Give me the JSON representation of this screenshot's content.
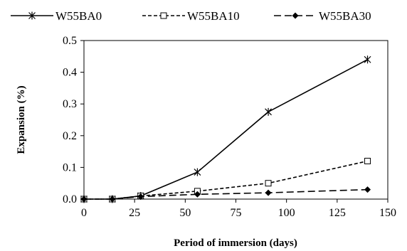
{
  "chart_data": {
    "type": "line",
    "xlabel": "Period of immersion (days)",
    "ylabel": "Expansion (%)",
    "xlim": [
      0,
      150
    ],
    "ylim": [
      0,
      0.5
    ],
    "xticks": [
      0,
      25,
      50,
      75,
      100,
      125,
      150
    ],
    "yticks": [
      "0.0",
      "0.1",
      "0.2",
      "0.3",
      "0.4",
      "0.5"
    ],
    "grid": false,
    "legend_position": "top",
    "series": [
      {
        "name": "W55BA0",
        "marker": "asterisk",
        "line_style": "solid",
        "x": [
          0,
          14,
          28,
          56,
          91,
          140
        ],
        "y": [
          0.0,
          0.0,
          0.01,
          0.085,
          0.275,
          0.44
        ]
      },
      {
        "name": "W55BA10",
        "marker": "open-square",
        "line_style": "short-dash",
        "x": [
          0,
          14,
          28,
          56,
          91,
          140
        ],
        "y": [
          0.0,
          0.0,
          0.01,
          0.025,
          0.05,
          0.12
        ]
      },
      {
        "name": "W55BA30",
        "marker": "filled-diamond",
        "line_style": "long-dash",
        "x": [
          0,
          14,
          28,
          56,
          91,
          140
        ],
        "y": [
          0.0,
          0.0,
          0.008,
          0.015,
          0.02,
          0.03
        ]
      }
    ]
  }
}
